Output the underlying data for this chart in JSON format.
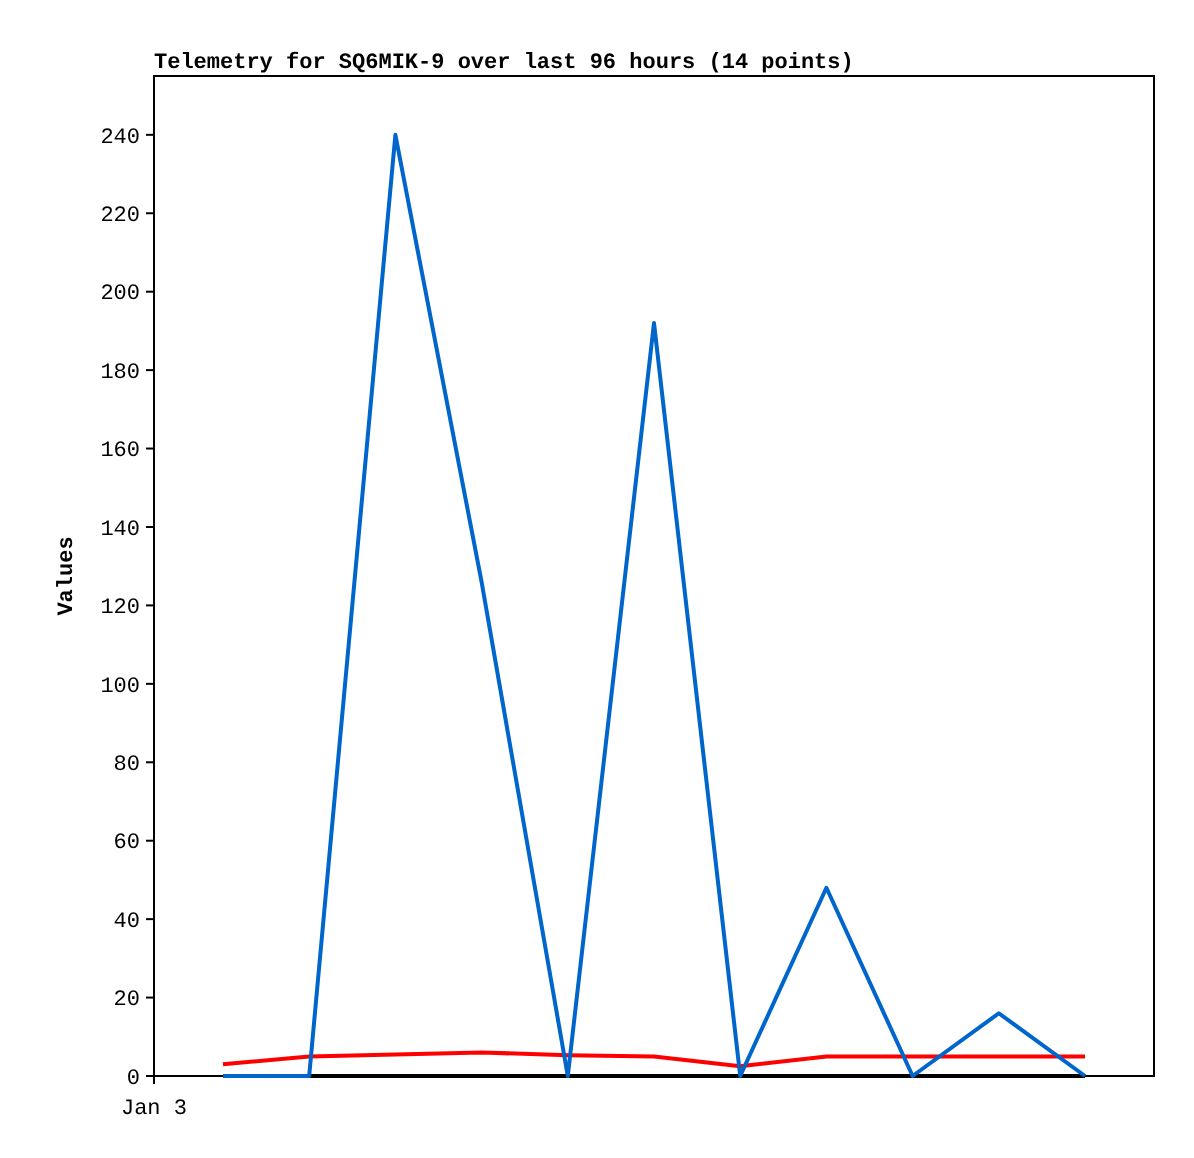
{
  "chart_data": {
    "type": "line",
    "title": "Telemetry for SQ6MIK-9 over last 96 hours (14 points)",
    "ylabel": "Values",
    "categories": [
      null,
      null,
      null,
      null,
      null,
      null,
      null,
      null,
      null,
      null,
      null
    ],
    "annotations": [
      "Jan 3"
    ],
    "ylim": [
      0,
      255
    ],
    "yticks": [
      0,
      20,
      40,
      60,
      80,
      100,
      120,
      140,
      160,
      180,
      200,
      220,
      240
    ],
    "tick_labels": "y",
    "grid": false,
    "marker": "none",
    "series": [
      {
        "color": "#000000",
        "values": [
          0,
          0,
          0,
          0,
          0,
          0,
          0,
          0,
          0,
          0,
          0
        ]
      },
      {
        "color": "#ff0000",
        "values": [
          3,
          5,
          5.5,
          6,
          5.3,
          5,
          2.5,
          5,
          5,
          5,
          5
        ]
      },
      {
        "color": "#0066cc",
        "values": [
          0,
          0,
          240,
          126,
          0,
          192,
          0,
          48,
          0,
          16,
          0
        ]
      }
    ]
  }
}
